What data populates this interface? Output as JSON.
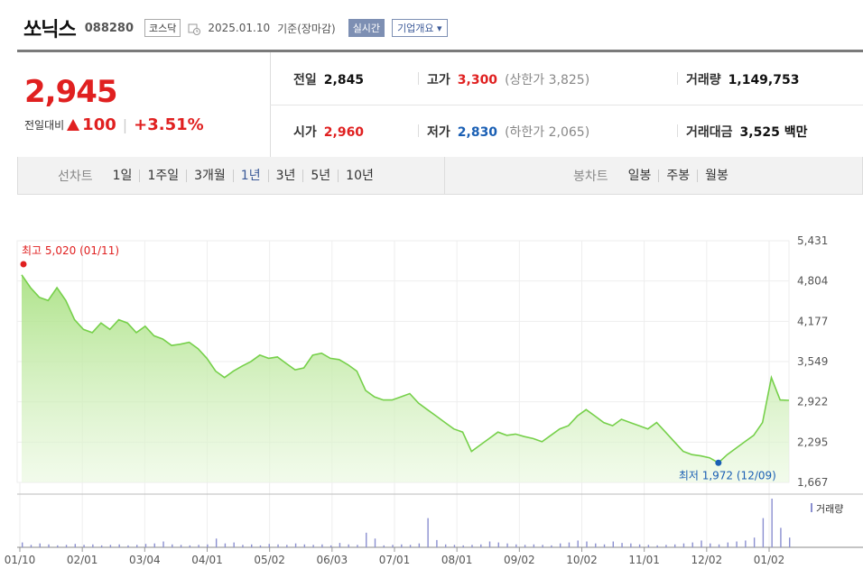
{
  "header": {
    "company": "쏘닉스",
    "code": "088280",
    "market": "코스닥",
    "date": "2025.01.10",
    "basis": "기준(장마감)",
    "realtime_label": "실시간",
    "company_info_label": "기업개요"
  },
  "quote": {
    "price": "2,945",
    "change_label": "전일대비",
    "change": "100",
    "change_pct": "+3.51%",
    "prev_close_label": "전일",
    "prev_close": "2,845",
    "open_label": "시가",
    "open": "2,960",
    "high_label": "고가",
    "high": "3,300",
    "upper_limit_label": "(상한가",
    "upper_limit": "3,825)",
    "low_label": "저가",
    "low": "2,830",
    "lower_limit_label": "(하한가",
    "lower_limit": "2,065)",
    "volume_label": "거래량",
    "volume": "1,149,753",
    "amount_label": "거래대금",
    "amount": "3,525",
    "amount_unit": "백만",
    "up_color": "#e02020",
    "down_color": "#1a5fb4"
  },
  "periods": {
    "line_label": "선차트",
    "line_items": [
      "1일",
      "1주일",
      "3개월",
      "1년",
      "3년",
      "5년",
      "10년"
    ],
    "active_line_item": "1년",
    "candle_label": "봉차트",
    "candle_items": [
      "일봉",
      "주봉",
      "월봉"
    ]
  },
  "chart_data": {
    "type": "area",
    "y_ticks": [
      "5,431",
      "4,804",
      "4,177",
      "3,549",
      "2,922",
      "2,295",
      "1,667"
    ],
    "ylim": [
      1667,
      5431
    ],
    "x_ticks": [
      "01/10",
      "02/01",
      "03/04",
      "04/01",
      "05/02",
      "06/03",
      "07/01",
      "08/01",
      "09/02",
      "10/02",
      "11/01",
      "12/02",
      "01/02"
    ],
    "high_annotation": "최고 5,020 (01/11)",
    "low_annotation": "최저 1,972 (12/09)",
    "volume_legend": "거래량",
    "line_color": "#76d04a",
    "series": [
      {
        "values": [
          4900,
          4700,
          4550,
          4500,
          4700,
          4500,
          4200,
          4050,
          4000,
          4150,
          4050,
          4200,
          4150,
          4000,
          4100,
          3950,
          3900,
          3800,
          3820,
          3850,
          3750,
          3600,
          3400,
          3300,
          3400,
          3480,
          3550,
          3650,
          3600,
          3620,
          3520,
          3420,
          3450,
          3650,
          3680,
          3600,
          3580,
          3500,
          3400,
          3100,
          3000,
          2950,
          2950,
          3000,
          3050,
          2900,
          2800,
          2700,
          2600,
          2500,
          2450,
          2150,
          2250,
          2350,
          2450,
          2400,
          2420,
          2380,
          2350,
          2300,
          2400,
          2500,
          2550,
          2700,
          2800,
          2700,
          2600,
          2550,
          2650,
          2600,
          2550,
          2500,
          2600,
          2450,
          2300,
          2150,
          2100,
          2080,
          2050,
          1972,
          2100,
          2200,
          2300,
          2400,
          2600,
          3300,
          2950,
          2945
        ]
      }
    ],
    "volume_values": [
      10,
      5,
      8,
      6,
      4,
      5,
      7,
      5,
      6,
      4,
      5,
      6,
      4,
      5,
      7,
      8,
      12,
      6,
      5,
      4,
      5,
      6,
      18,
      8,
      10,
      5,
      6,
      4,
      7,
      6,
      5,
      8,
      6,
      5,
      6,
      4,
      9,
      6,
      5,
      30,
      18,
      4,
      5,
      6,
      5,
      8,
      60,
      15,
      6,
      5,
      4,
      5,
      6,
      12,
      10,
      8,
      6,
      5,
      6,
      5,
      4,
      8,
      10,
      14,
      12,
      8,
      6,
      12,
      9,
      8,
      6,
      5,
      4,
      5,
      6,
      8,
      10,
      14,
      8,
      6,
      10,
      12,
      14,
      20,
      60,
      100,
      40,
      20
    ]
  }
}
